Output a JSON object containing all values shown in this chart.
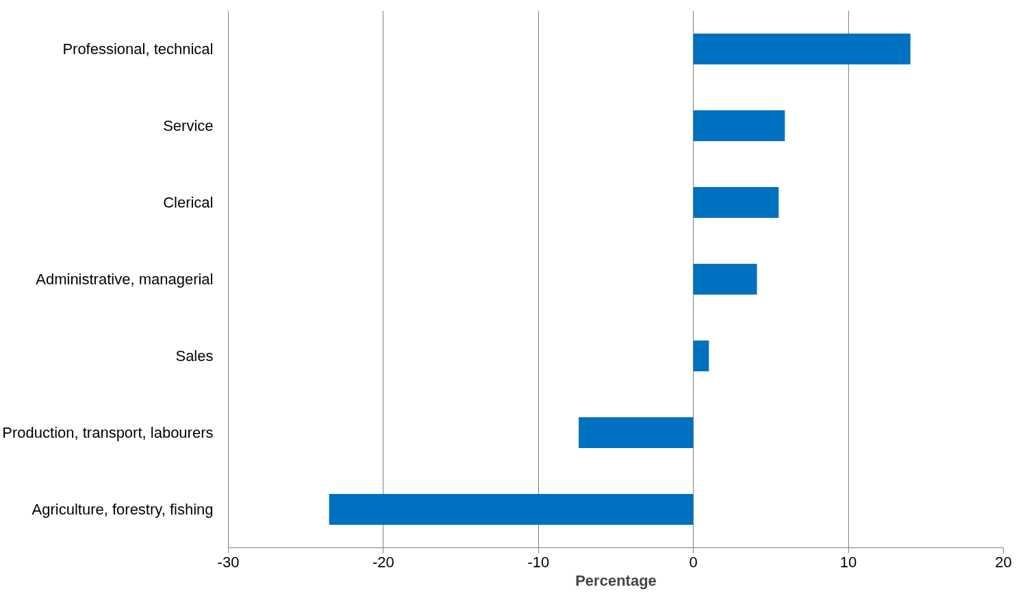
{
  "chart_data": {
    "type": "bar",
    "orientation": "horizontal",
    "xlabel": "Percentage",
    "categories": [
      "Professional, technical",
      "Service",
      "Clerical",
      "Administrative, managerial",
      "Sales",
      "Production, transport, labourers",
      "Agriculture, forestry, fishing"
    ],
    "values": [
      14.0,
      5.9,
      5.5,
      4.1,
      1.0,
      -7.4,
      -23.5
    ],
    "color": "#0070c0",
    "xlim": [
      -30,
      20
    ],
    "xticks": [
      -30,
      -20,
      -10,
      0,
      10,
      20
    ],
    "grid": "x"
  }
}
